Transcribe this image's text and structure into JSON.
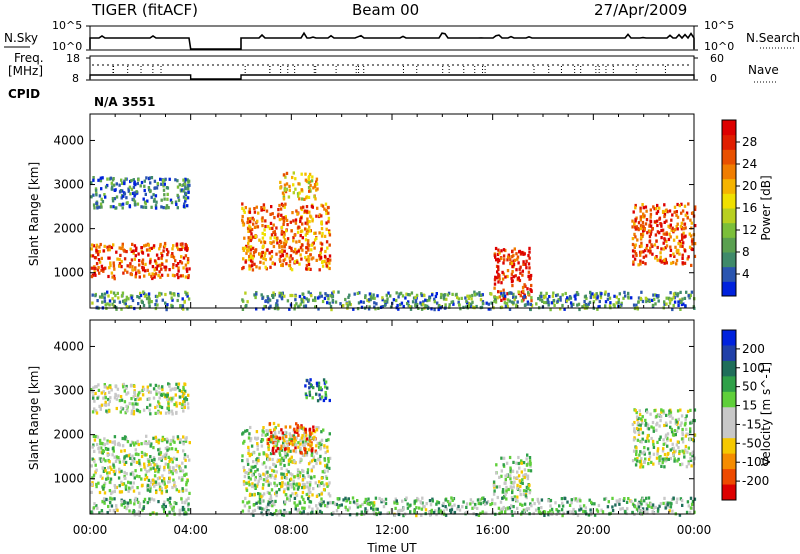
{
  "header": {
    "radar": "TIGER (fitACF)",
    "beam": "Beam 00",
    "date": "27/Apr/2009"
  },
  "strip": {
    "nsky_label": "N.Sky",
    "nsky_ticks": [
      "10^5",
      "10^0"
    ],
    "nsearch_label": "N.Search",
    "nsearch_ticks": [
      "10^5",
      "10^0"
    ],
    "freq_label_1": "Freq.",
    "freq_label_2": "[MHz]",
    "freq_ticks": [
      "18",
      "8"
    ],
    "nave_label": "Nave",
    "nave_ticks": [
      "60",
      "0"
    ],
    "cpid_label": "CPID",
    "cpid_value": "N/A 3551"
  },
  "colors": {
    "power_scale": [
      "#0022dd",
      "#2a55b0",
      "#3f8a6a",
      "#5aa050",
      "#7bbf3a",
      "#b8d020",
      "#f0e000",
      "#f5b400",
      "#f07d00",
      "#e85000",
      "#e01e00",
      "#dd0000"
    ],
    "velocity_scale": [
      "#0022dd",
      "#2040a8",
      "#1f6e5a",
      "#2fa048",
      "#5fcf3a",
      "#c8c8c8",
      "#c8c8c8",
      "#f5c800",
      "#f58c00",
      "#ee4a00",
      "#dd0000"
    ],
    "ground_scatter": "#c8c8c8"
  },
  "chart_data": [
    {
      "type": "heatmap",
      "name": "power",
      "xlabel": "",
      "ylabel": "Slant Range [km]",
      "yticks": [
        "1000",
        "2000",
        "3000",
        "4000"
      ],
      "ylim": [
        200,
        4600
      ],
      "colorbar": {
        "label": "Power [dB]",
        "ticks": [
          "4",
          "8",
          "12",
          "16",
          "20",
          "24",
          "28"
        ],
        "range": [
          0,
          32
        ]
      },
      "data_gap": [
        "04:00",
        "06:00"
      ],
      "echo_regions": [
        {
          "start": "00:00",
          "end": "04:00",
          "range_km": [
            900,
            1700
          ],
          "value_db": 26
        },
        {
          "start": "00:00",
          "end": "04:00",
          "range_km": [
            2500,
            3200
          ],
          "value_db": 6
        },
        {
          "start": "06:00",
          "end": "09:30",
          "range_km": [
            1100,
            2600
          ],
          "value_db": 24
        },
        {
          "start": "07:30",
          "end": "09:00",
          "range_km": [
            2700,
            3300
          ],
          "value_db": 18
        },
        {
          "start": "16:00",
          "end": "17:30",
          "range_km": [
            400,
            1600
          ],
          "value_db": 28
        },
        {
          "start": "21:30",
          "end": "24:00",
          "range_km": [
            1200,
            2600
          ],
          "value_db": 26
        },
        {
          "start": "00:00",
          "end": "24:00",
          "range_km": [
            200,
            600
          ],
          "value_db": 8
        }
      ]
    },
    {
      "type": "heatmap",
      "name": "velocity",
      "xlabel": "Time UT",
      "ylabel": "Slant Range [km]",
      "xticks": [
        "00:00",
        "04:00",
        "08:00",
        "12:00",
        "16:00",
        "20:00",
        "00:00"
      ],
      "yticks": [
        "1000",
        "2000",
        "3000",
        "4000"
      ],
      "ylim": [
        200,
        4600
      ],
      "colorbar": {
        "label": "Velocity [m s^-1]",
        "ticks": [
          "200",
          "100",
          "50",
          "15",
          "-15",
          "-50",
          "-100",
          "-200"
        ],
        "range": [
          -250,
          250
        ]
      },
      "data_gap": [
        "04:00",
        "06:00"
      ],
      "echo_regions": [
        {
          "start": "00:00",
          "end": "04:00",
          "range_km": [
            700,
            2000
          ],
          "value_ms": 0
        },
        {
          "start": "00:00",
          "end": "04:00",
          "range_km": [
            2500,
            3200
          ],
          "value_ms": 0
        },
        {
          "start": "06:00",
          "end": "09:30",
          "range_km": [
            600,
            2200
          ],
          "value_ms": 0
        },
        {
          "start": "08:30",
          "end": "09:30",
          "range_km": [
            2800,
            3300
          ],
          "value_ms": 150
        },
        {
          "start": "07:00",
          "end": "09:00",
          "range_km": [
            1600,
            2300
          ],
          "value_ms": -150
        },
        {
          "start": "16:00",
          "end": "17:30",
          "range_km": [
            600,
            1600
          ],
          "value_ms": 0
        },
        {
          "start": "21:30",
          "end": "24:00",
          "range_km": [
            1300,
            2600
          ],
          "value_ms": 0
        },
        {
          "start": "00:00",
          "end": "24:00",
          "range_km": [
            200,
            600
          ],
          "value_ms": 40
        }
      ]
    }
  ]
}
